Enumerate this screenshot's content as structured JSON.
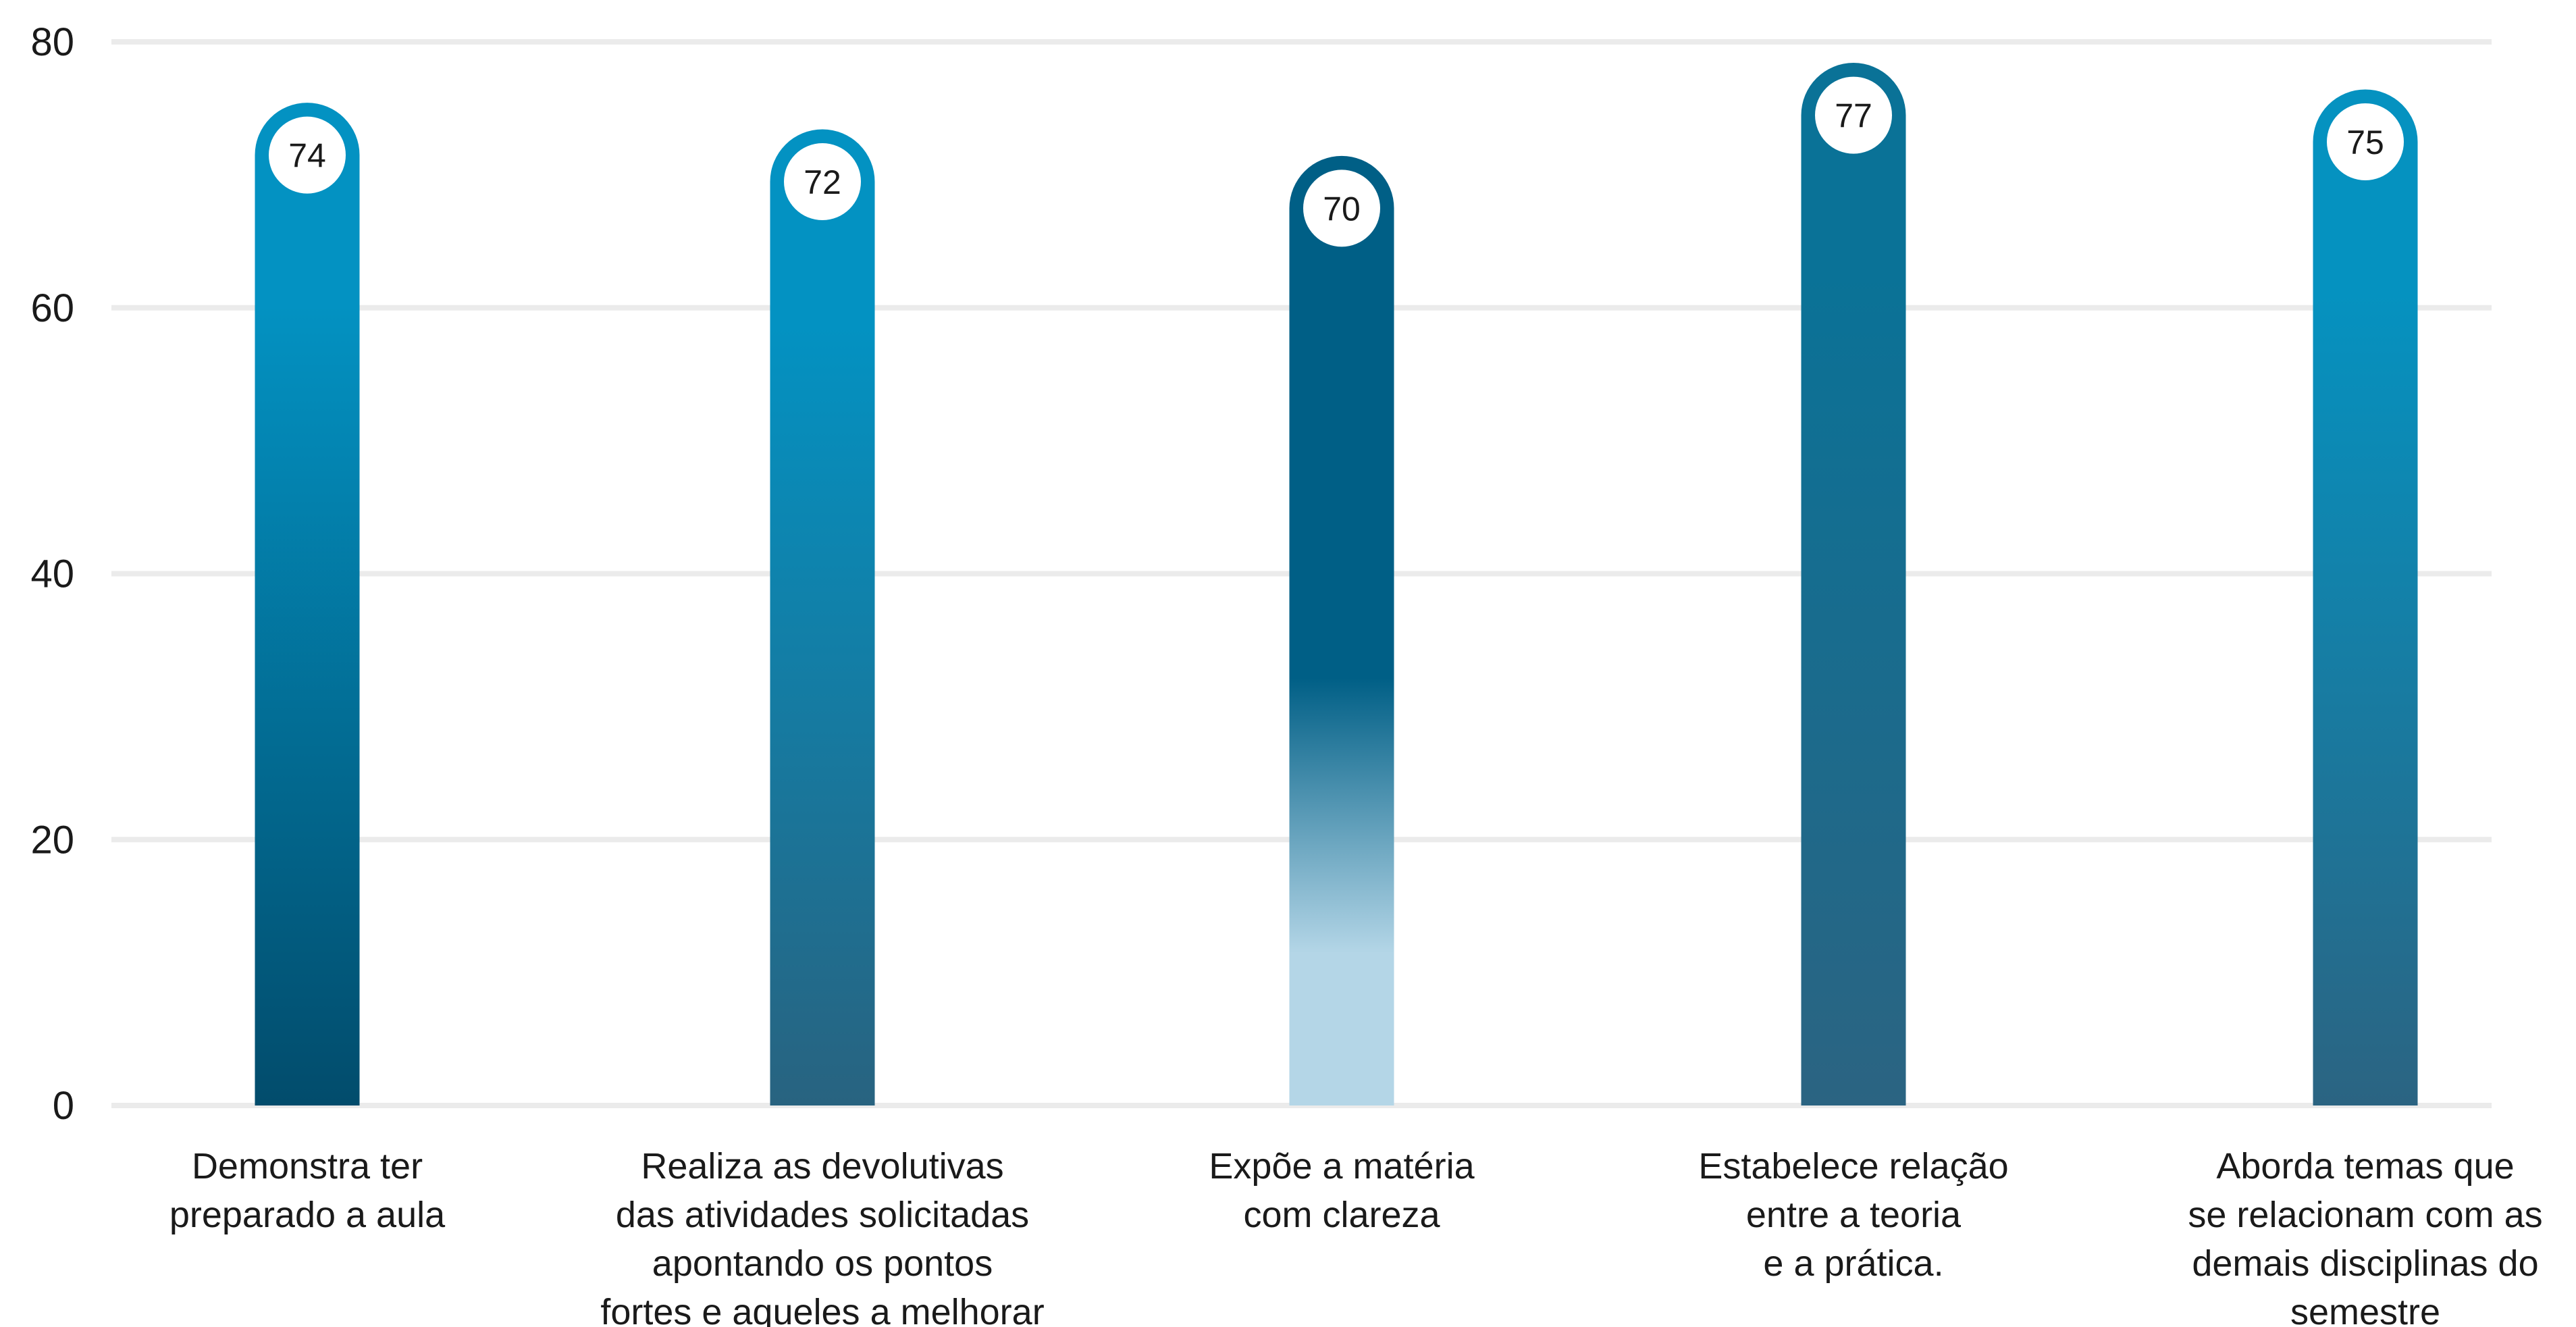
{
  "chart_data": {
    "type": "bar",
    "categories": [
      [
        "Demonstra ter",
        "preparado a aula"
      ],
      [
        "Realiza as devolutivas",
        "das atividades solicitadas",
        "apontando os pontos",
        "fortes e aqueles a melhorar"
      ],
      [
        "Expõe a matéria",
        "com clareza"
      ],
      [
        "Estabelece relação",
        "entre a teoria",
        "e a prática."
      ],
      [
        "Aborda temas que",
        "se relacionam com as",
        "demais disciplinas do",
        "semestre"
      ]
    ],
    "values": [
      74,
      72,
      70,
      77,
      75
    ],
    "value_labels": [
      "74",
      "72",
      "70",
      "77",
      "75"
    ],
    "ylim": [
      0,
      80
    ],
    "yticks": [
      0,
      20,
      40,
      60,
      80
    ],
    "ytick_labels": [
      "0",
      "20",
      "40",
      "60",
      "80"
    ],
    "grid": true,
    "xlabel": "",
    "ylabel": "",
    "title": "",
    "colors": {
      "grid": "#ebebeb",
      "text": "#1a1a1a",
      "bar_gradients": [
        [
          "#0392c2",
          "#024c6c"
        ],
        [
          "#0392c2",
          "#286380"
        ],
        [
          "#005f86",
          "#b4d6e7"
        ],
        [
          "#0a7297",
          "#2b6482"
        ],
        [
          "#0592c0",
          "#2b6482"
        ]
      ]
    }
  }
}
